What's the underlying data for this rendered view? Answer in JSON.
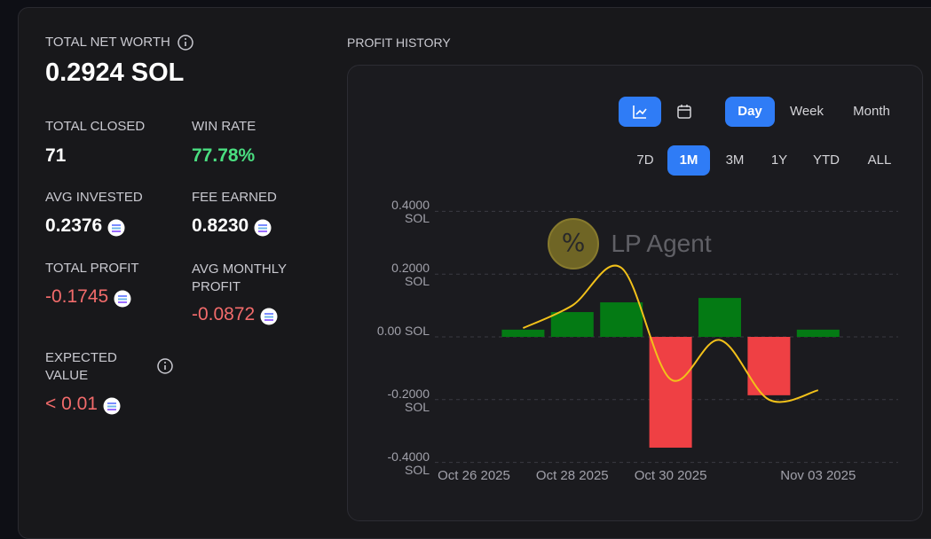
{
  "stats": {
    "net_worth_label": "TOTAL NET WORTH",
    "net_worth": "0.2924 SOL",
    "items": [
      {
        "label": "TOTAL CLOSED",
        "value": "71"
      },
      {
        "label": "WIN RATE",
        "value": "77.78%"
      },
      {
        "label": "AVG INVESTED",
        "value": "0.2376"
      },
      {
        "label": "FEE EARNED",
        "value": "0.8230"
      },
      {
        "label": "TOTAL PROFIT",
        "value": "-0.1745"
      },
      {
        "label": "AVG MONTHLY PROFIT",
        "value": "-0.0872"
      },
      {
        "label": "EXPECTED VALUE",
        "value": "< 0.01"
      }
    ]
  },
  "controls": {
    "views": [
      "Day",
      "Week",
      "Month"
    ],
    "ranges": [
      "7D",
      "1M",
      "3M",
      "1Y",
      "YTD",
      "ALL"
    ]
  },
  "watermark": "LP Agent",
  "chart_data": {
    "type": "bar",
    "title": "PROFIT HISTORY",
    "categories": [
      "Oct 26 2025",
      null,
      "Oct 28 2025",
      null,
      "Oct 30 2025",
      null,
      null,
      "Nov 03 2025"
    ],
    "values": [
      null,
      0.023,
      0.079,
      0.11,
      -0.353,
      0.124,
      -0.186,
      0.023
    ],
    "positive_color": "#047a14",
    "negative_color": "#ef4044",
    "line_values": [
      null,
      0.028,
      0.1,
      0.22,
      -0.135,
      -0.01,
      -0.2,
      -0.17
    ],
    "line_color": "#f2c11a",
    "ylim": [
      -0.4,
      0.4
    ],
    "yticks": [
      {
        "value": 0.4,
        "label": "0.4000 SOL"
      },
      {
        "value": 0.2,
        "label": "0.2000 SOL"
      },
      {
        "value": 0,
        "label": "0.00 SOL"
      },
      {
        "value": -0.2,
        "label": "-0.2000 SOL"
      },
      {
        "value": -0.4,
        "label": "-0.4000 SOL"
      }
    ],
    "grid": true
  }
}
